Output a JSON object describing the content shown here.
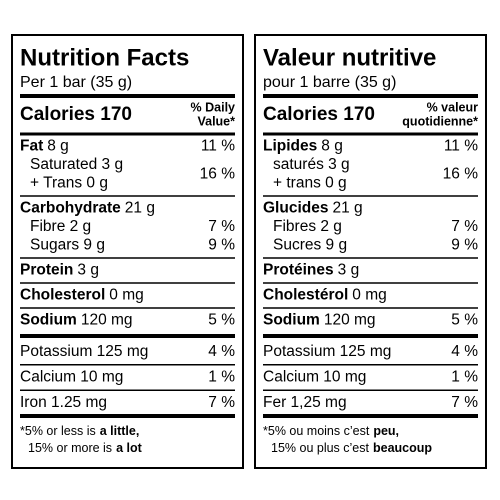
{
  "panels": [
    {
      "title": "Nutrition Facts",
      "serving": "Per 1 bar (35 g)",
      "calories": "Calories 170",
      "dv_header": [
        "% Daily",
        "Value*"
      ],
      "groups": [
        {
          "name": "Fat",
          "amount": "8 g",
          "dv": "11 %",
          "subs": [
            {
              "label": "Saturated 3 g"
            },
            {
              "label": "+ Trans 0 g"
            }
          ],
          "sub_dv": "16 %"
        },
        {
          "name": "Carbohydrate",
          "amount": "21 g",
          "subs": [
            {
              "label": "Fibre 2 g",
              "dv": "7 %"
            },
            {
              "label": "Sugars 9 g",
              "dv": "9 %"
            }
          ]
        },
        {
          "name": "Protein",
          "amount": "3 g"
        },
        {
          "name": "Cholesterol",
          "amount": "0 mg"
        },
        {
          "name": "Sodium",
          "amount": "120 mg",
          "dv": "5 %"
        }
      ],
      "minerals": [
        {
          "label": "Potassium 125 mg",
          "dv": "4 %"
        },
        {
          "label": "Calcium 10 mg",
          "dv": "1 %"
        },
        {
          "label": "Iron 1.25 mg",
          "dv": "7 %"
        }
      ],
      "footnote": [
        [
          {
            "text": "*5% or less is"
          },
          {
            "text": "a little,",
            "bold": true
          }
        ],
        [
          {
            "text": "15% or more is"
          },
          {
            "text": "a lot",
            "bold": true
          }
        ]
      ]
    },
    {
      "title": "Valeur nutritive",
      "serving": "pour 1 barre (35 g)",
      "calories": "Calories 170",
      "dv_header": [
        "% valeur",
        "quotidienne*"
      ],
      "groups": [
        {
          "name": "Lipides",
          "amount": "8 g",
          "dv": "11 %",
          "subs": [
            {
              "label": "saturés 3 g"
            },
            {
              "label": "+ trans 0 g"
            }
          ],
          "sub_dv": "16 %"
        },
        {
          "name": "Glucides",
          "amount": "21 g",
          "subs": [
            {
              "label": "Fibres 2 g",
              "dv": "7 %"
            },
            {
              "label": "Sucres 9 g",
              "dv": "9 %"
            }
          ]
        },
        {
          "name": "Protéines",
          "amount": "3 g"
        },
        {
          "name": "Cholestérol",
          "amount": "0 mg"
        },
        {
          "name": "Sodium",
          "amount": "120 mg",
          "dv": "5 %"
        }
      ],
      "minerals": [
        {
          "label": "Potassium 125 mg",
          "dv": "4 %"
        },
        {
          "label": "Calcium 10 mg",
          "dv": "1 %"
        },
        {
          "label": "Fer 1,25 mg",
          "dv": "7 %"
        }
      ],
      "footnote": [
        [
          {
            "text": "*5% ou moins c’est"
          },
          {
            "text": "peu,",
            "bold": true
          }
        ],
        [
          {
            "text": "15% ou plus c’est"
          },
          {
            "text": "beaucoup",
            "bold": true
          }
        ]
      ]
    }
  ]
}
